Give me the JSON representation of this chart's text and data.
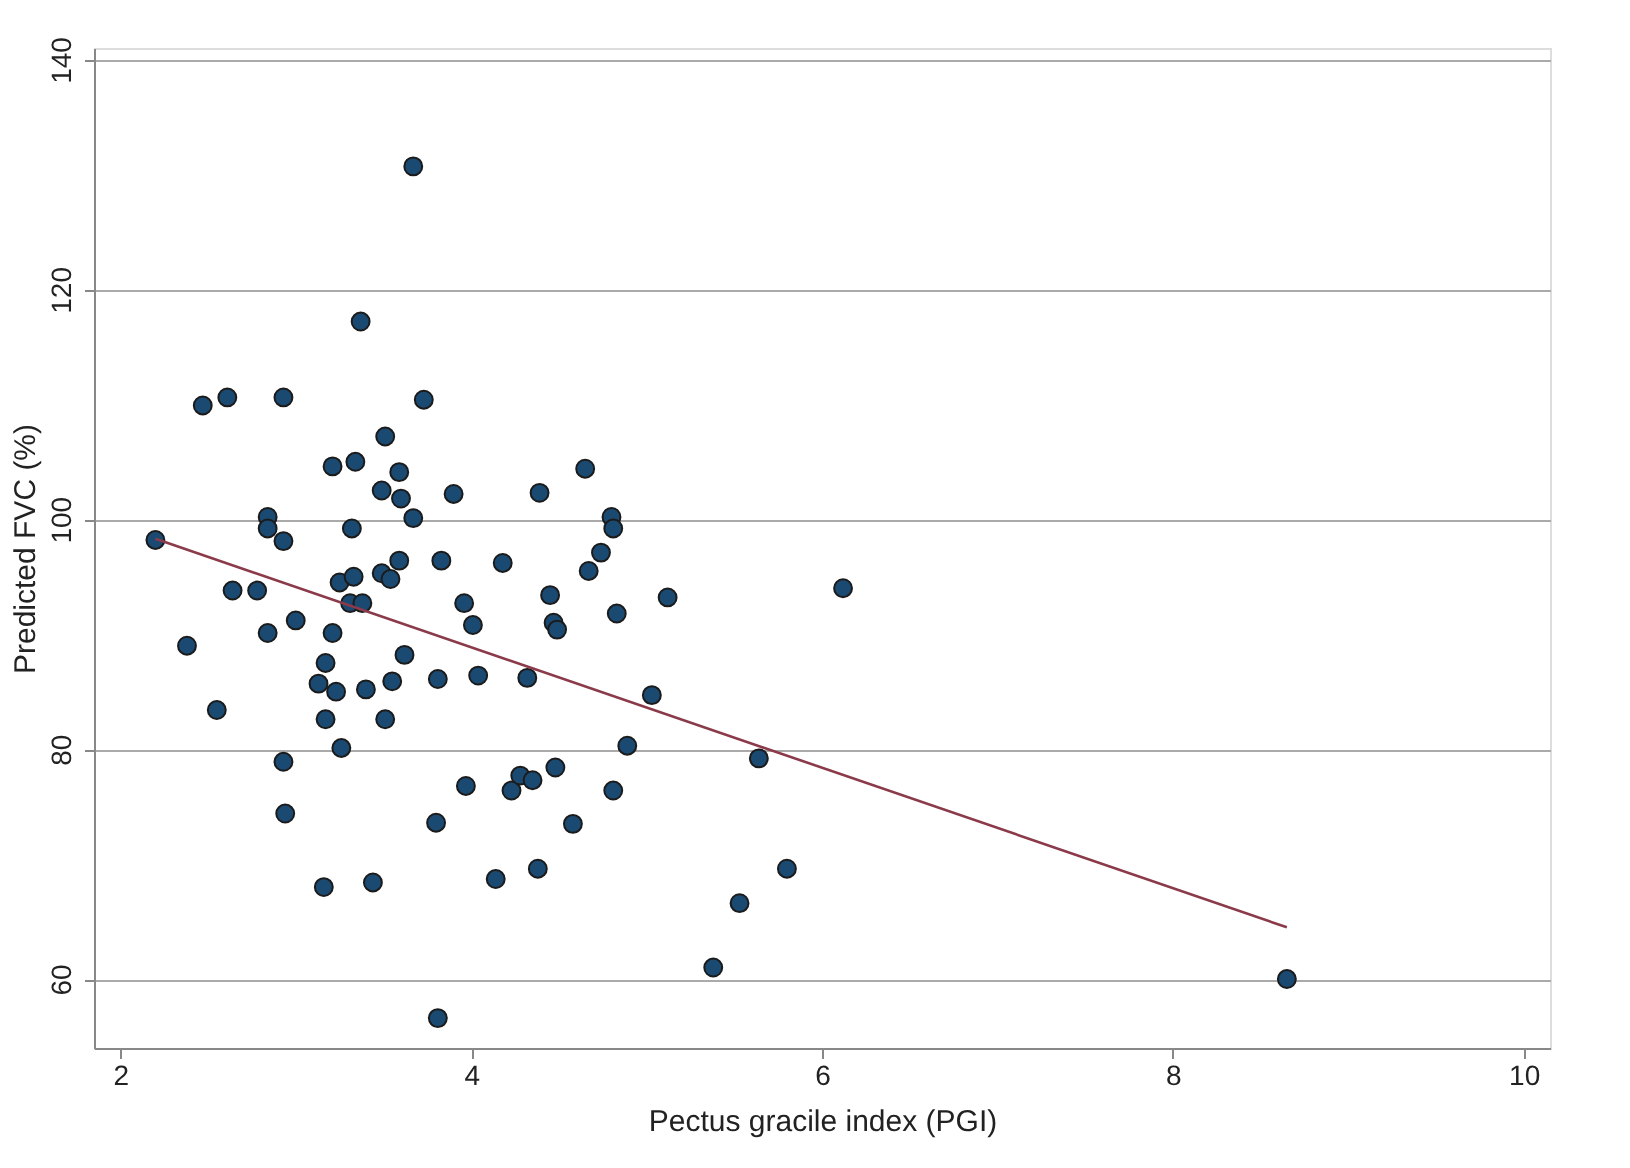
{
  "chart_data": {
    "type": "scatter",
    "xlabel": "Pectus gracile index (PGI)",
    "ylabel": "Predicted FVC (%)",
    "xlim": [
      1.85,
      10.15
    ],
    "ylim": [
      54,
      141
    ],
    "xticks": [
      2,
      4,
      6,
      8,
      10
    ],
    "yticks": [
      60,
      80,
      100,
      120,
      140
    ],
    "grid": "y",
    "series": [
      {
        "color": "#1a4a72",
        "marker": "circle",
        "x": [
          2.2,
          2.47,
          2.61,
          2.38,
          2.55,
          2.64,
          2.78,
          2.84,
          2.84,
          2.84,
          2.93,
          2.93,
          2.93,
          2.94,
          3.0,
          3.13,
          3.17,
          3.17,
          3.16,
          3.21,
          3.21,
          3.23,
          3.25,
          3.26,
          3.32,
          3.34,
          3.31,
          3.33,
          3.37,
          3.38,
          3.4,
          3.44,
          3.49,
          3.51,
          3.49,
          3.54,
          3.51,
          3.55,
          3.59,
          3.6,
          3.62,
          3.59,
          3.67,
          3.67,
          3.73,
          3.8,
          3.81,
          3.81,
          3.83,
          3.9,
          3.96,
          3.97,
          4.01,
          4.04,
          4.14,
          4.18,
          4.23,
          4.28,
          4.32,
          4.35,
          4.38,
          4.39,
          4.45,
          4.47,
          4.49,
          4.48,
          4.58,
          4.65,
          4.67,
          4.74,
          4.8,
          4.81,
          4.81,
          4.83,
          4.89,
          5.03,
          5.12,
          5.38,
          5.53,
          5.64,
          5.8,
          6.12,
          8.65
        ],
        "values": [
          98.2,
          109.9,
          110.6,
          89.0,
          83.4,
          93.8,
          93.8,
          100.2,
          99.2,
          90.1,
          110.6,
          98.1,
          78.9,
          74.4,
          91.2,
          85.7,
          87.5,
          82.6,
          68.0,
          104.6,
          90.1,
          85.0,
          94.5,
          80.1,
          99.2,
          105.0,
          92.7,
          95.0,
          117.2,
          92.7,
          85.2,
          68.4,
          102.5,
          107.2,
          95.3,
          94.8,
          82.6,
          85.9,
          104.1,
          101.8,
          88.2,
          96.4,
          130.7,
          100.1,
          110.4,
          73.6,
          86.1,
          56.6,
          96.4,
          102.2,
          92.7,
          76.8,
          90.8,
          86.4,
          68.7,
          96.2,
          76.4,
          77.7,
          86.2,
          77.3,
          69.6,
          102.3,
          93.4,
          91.0,
          90.4,
          78.4,
          73.5,
          104.4,
          95.5,
          97.1,
          100.2,
          99.2,
          76.4,
          91.8,
          80.3,
          84.7,
          93.2,
          61.0,
          66.6,
          79.2,
          69.6,
          94.0,
          60.0
        ]
      },
      {
        "type": "line",
        "color": "#8b3a4a",
        "line_style": "solid",
        "marker": "none",
        "x": [
          2.2,
          8.65
        ],
        "values": [
          98.3,
          64.5
        ]
      }
    ]
  }
}
